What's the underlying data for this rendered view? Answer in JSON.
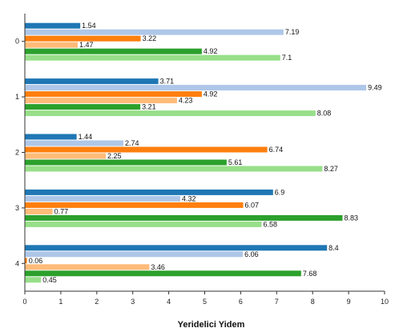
{
  "chart_data": {
    "type": "bar",
    "orientation": "horizontal",
    "categories": [
      "0",
      "1",
      "2",
      "3",
      "4"
    ],
    "series": [
      {
        "color": "#1f77b4",
        "values": [
          1.54,
          3.71,
          1.44,
          6.9,
          8.4
        ]
      },
      {
        "color": "#aec7e8",
        "values": [
          7.19,
          9.49,
          2.74,
          4.32,
          6.06
        ]
      },
      {
        "color": "#ff7f0e",
        "values": [
          3.22,
          4.92,
          6.74,
          6.07,
          0.06
        ]
      },
      {
        "color": "#ffbb78",
        "values": [
          1.47,
          4.23,
          2.25,
          0.77,
          3.46
        ]
      },
      {
        "color": "#2ca02c",
        "values": [
          4.92,
          3.21,
          5.61,
          8.83,
          7.68
        ]
      },
      {
        "color": "#98df8a",
        "values": [
          7.1,
          8.08,
          8.27,
          6.58,
          0.45
        ]
      }
    ],
    "data_labels": [
      [
        "1.54",
        "7.19",
        "3.22",
        "1.47",
        "4.92",
        "7.1"
      ],
      [
        "3.71",
        "9.49",
        "4.92",
        "4.23",
        "3.21",
        "8.08"
      ],
      [
        "1.44",
        "2.74",
        "6.74",
        "2.25",
        "5.61",
        "8.27"
      ],
      [
        "6.9",
        "4.32",
        "6.07",
        "0.77",
        "8.83",
        "6.58"
      ],
      [
        "8.4",
        "6.06",
        "0.06",
        "3.46",
        "7.68",
        "0.45"
      ]
    ],
    "xticks": [
      "0",
      "1",
      "2",
      "3",
      "4",
      "5",
      "6",
      "7",
      "8",
      "9",
      "10"
    ],
    "xlim": [
      0,
      10
    ],
    "xlabel": "Yeridelici Yidem",
    "ylabel": "",
    "title": "",
    "grid": false,
    "legend": "none"
  }
}
